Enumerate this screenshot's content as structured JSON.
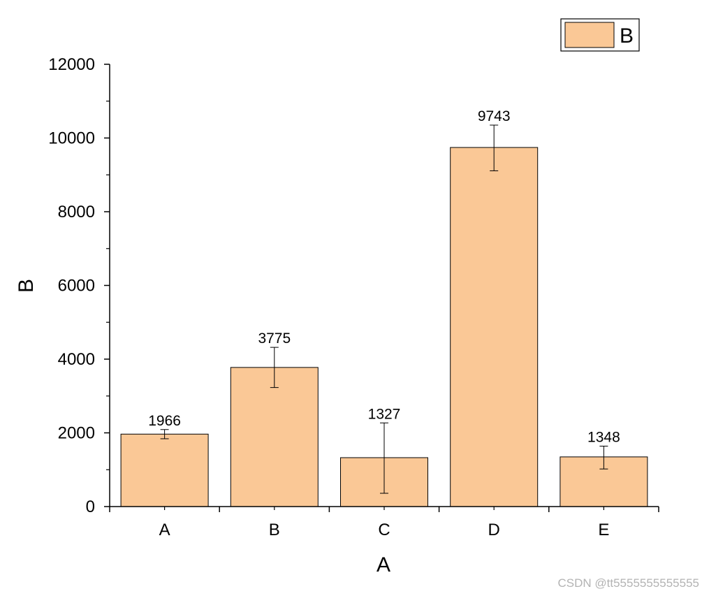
{
  "chart_data": {
    "type": "bar",
    "categories": [
      "A",
      "B",
      "C",
      "D",
      "E"
    ],
    "series": [
      {
        "name": "B",
        "values": [
          1966,
          3775,
          1327,
          9743,
          1348
        ],
        "error_upper": [
          2090,
          4320,
          2270,
          10350,
          1640
        ],
        "error_lower": [
          1840,
          3230,
          360,
          9110,
          1020
        ],
        "color": "#fac896"
      }
    ],
    "data_labels": [
      "1966",
      "3775",
      "1327",
      "9743",
      "1348"
    ],
    "xlabel": "A",
    "ylabel": "B",
    "ylim": [
      0,
      12000
    ],
    "yticks": [
      0,
      2000,
      4000,
      6000,
      8000,
      10000,
      12000
    ],
    "ytick_labels": [
      "0",
      "2000",
      "4000",
      "6000",
      "8000",
      "10000",
      "12000"
    ],
    "y_minor_step": 1000,
    "legend": {
      "label": "B",
      "placement": "top-right"
    },
    "grid": false,
    "error_bars": true
  },
  "watermark": "CSDN @tt5555555555555"
}
